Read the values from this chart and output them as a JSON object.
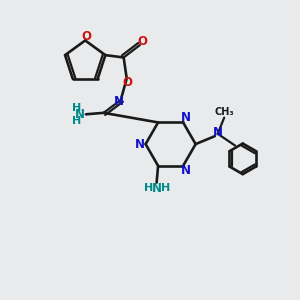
{
  "bg_color": "#e8eaec",
  "bond_color": "#1a1a1a",
  "N_color": "#1111cc",
  "O_color": "#cc1111",
  "NH2_color": "#008b8b",
  "figsize": [
    3.0,
    3.0
  ],
  "dpi": 100,
  "xlim": [
    0,
    10
  ],
  "ylim": [
    0,
    10
  ]
}
